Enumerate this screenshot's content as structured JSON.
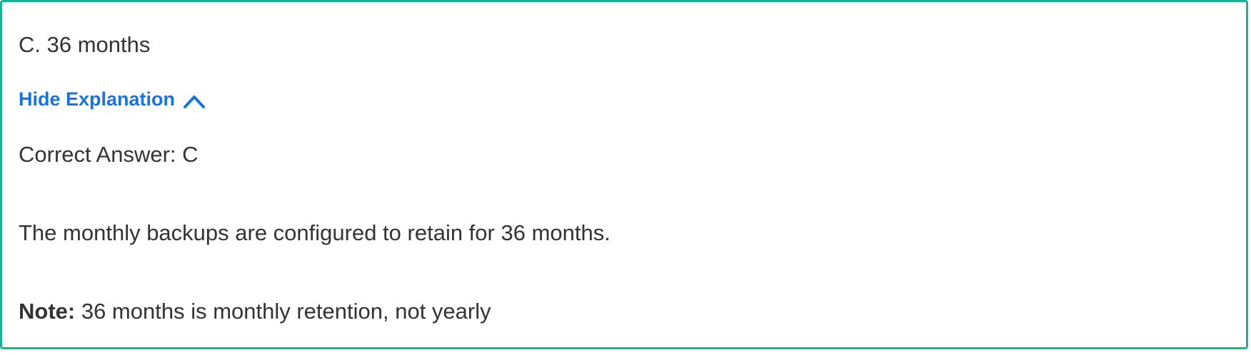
{
  "option": {
    "text": "C. 36 months"
  },
  "explanation_toggle": {
    "label": "Hide Explanation",
    "icon": "chevron-up-icon",
    "color": "#1a73d9"
  },
  "explanation": {
    "correct_answer": "Correct Answer: C",
    "body": "The monthly backups are configured to retain for 36 months.",
    "note_label": "Note:",
    "note_text": " 36 months is monthly retention, not yearly"
  },
  "colors": {
    "border": "#1ab394",
    "text": "#333333"
  }
}
